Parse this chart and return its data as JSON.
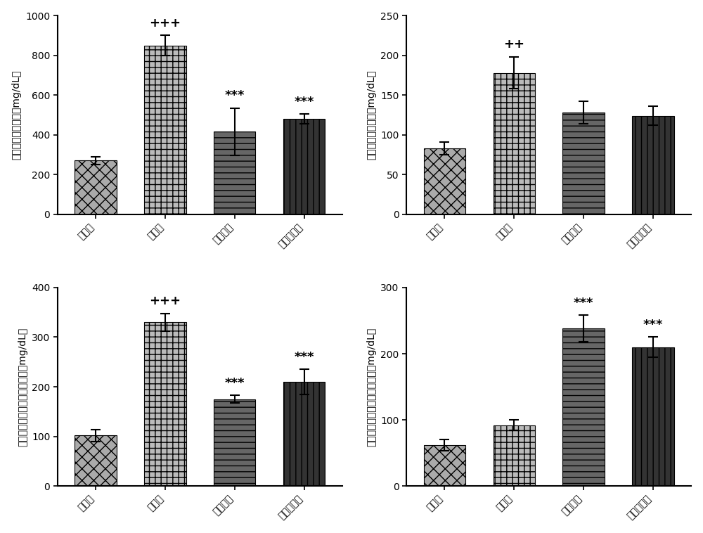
{
  "subplots": [
    {
      "ylabel_top": "mg/dL",
      "ylabel_chars": "血浆总胆固醇浓度（",
      "ylabel_full": "血浆总胆固醇浓度（mg/dL）",
      "ylim": [
        0,
        1000
      ],
      "yticks": [
        0,
        200,
        400,
        600,
        800,
        1000
      ],
      "values": [
        270,
        850,
        415,
        480
      ],
      "errors": [
        20,
        50,
        120,
        25
      ],
      "annotations": [
        "",
        "+++",
        "***",
        "***"
      ],
      "categories": [
        "对照组",
        "模型组",
        "石樚醇组",
        "阿伐他汀组"
      ]
    },
    {
      "ylabel_top": "mg/dL",
      "ylabel_full": "血浆甘油三酔浓度（mg/dL）",
      "ylim": [
        0,
        250
      ],
      "yticks": [
        0,
        50,
        100,
        150,
        200,
        250
      ],
      "values": [
        83,
        178,
        128,
        124
      ],
      "errors": [
        8,
        20,
        14,
        12
      ],
      "annotations": [
        "",
        "++",
        "",
        ""
      ],
      "categories": [
        "对照组",
        "模型组",
        "石樚醇组",
        "阿伐他汀组"
      ]
    },
    {
      "ylabel_top": "mg/dL",
      "ylabel_full": "血浆低密度脂蛋白胆固醇浓度（mg/dL）",
      "ylim": [
        0,
        400
      ],
      "yticks": [
        0,
        100,
        200,
        300,
        400
      ],
      "values": [
        102,
        330,
        175,
        210
      ],
      "errors": [
        12,
        18,
        8,
        25
      ],
      "annotations": [
        "",
        "+++",
        "***",
        "***"
      ],
      "categories": [
        "对照组",
        "模型组",
        "石樚醇组",
        "阿伐他汀组"
      ]
    },
    {
      "ylabel_top": "mg/dL",
      "ylabel_full": "血浆高密度脂蛋白胆固醇浓度（mg/dL）",
      "ylim": [
        0,
        300
      ],
      "yticks": [
        0,
        100,
        200,
        300
      ],
      "values": [
        62,
        92,
        238,
        210
      ],
      "errors": [
        8,
        8,
        20,
        15
      ],
      "annotations": [
        "",
        "",
        "***",
        "***"
      ],
      "categories": [
        "对照组",
        "模型组",
        "石樚醇组",
        "阿伐他汀组"
      ]
    }
  ],
  "background_color": "#ffffff",
  "annotation_fontsize": 13,
  "tick_fontsize": 10,
  "ylabel_fontsize": 10
}
